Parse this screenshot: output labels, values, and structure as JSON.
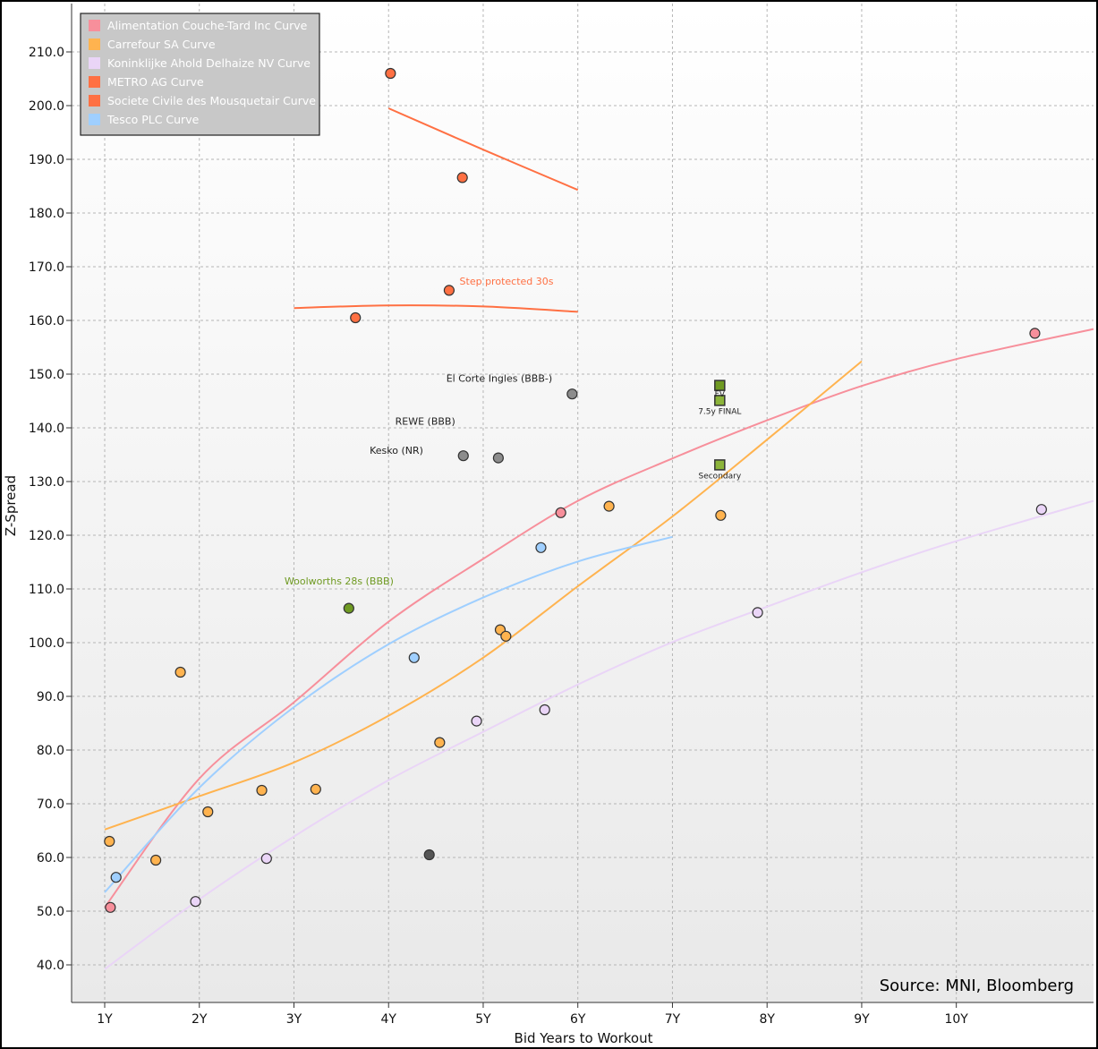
{
  "chart_data": {
    "type": "scatter",
    "title": "",
    "xlabel": "Bid Years to Workout",
    "ylabel": "Z-Spread",
    "xlim": [
      0.65,
      11.45
    ],
    "ylim": [
      33,
      219
    ],
    "grid": true,
    "legend_position": "top-left",
    "source": "Source: MNI, Bloomberg",
    "x_ticks": [
      {
        "v": 1,
        "label": "1Y"
      },
      {
        "v": 2,
        "label": "2Y"
      },
      {
        "v": 3,
        "label": "3Y"
      },
      {
        "v": 4,
        "label": "4Y"
      },
      {
        "v": 5,
        "label": "5Y"
      },
      {
        "v": 6,
        "label": "6Y"
      },
      {
        "v": 7,
        "label": "7Y"
      },
      {
        "v": 8,
        "label": "8Y"
      },
      {
        "v": 9,
        "label": "9Y"
      },
      {
        "v": 10,
        "label": "10Y"
      }
    ],
    "y_ticks": [
      {
        "v": 40,
        "label": "40.0"
      },
      {
        "v": 50,
        "label": "50.0"
      },
      {
        "v": 60,
        "label": "60.0"
      },
      {
        "v": 70,
        "label": "70.0"
      },
      {
        "v": 80,
        "label": "80.0"
      },
      {
        "v": 90,
        "label": "90.0"
      },
      {
        "v": 100,
        "label": "100.0"
      },
      {
        "v": 110,
        "label": "110.0"
      },
      {
        "v": 120,
        "label": "120.0"
      },
      {
        "v": 130,
        "label": "130.0"
      },
      {
        "v": 140,
        "label": "140.0"
      },
      {
        "v": 150,
        "label": "150.0"
      },
      {
        "v": 160,
        "label": "160.0"
      },
      {
        "v": 170,
        "label": "170.0"
      },
      {
        "v": 180,
        "label": "180.0"
      },
      {
        "v": 190,
        "label": "190.0"
      },
      {
        "v": 200,
        "label": "200.0"
      },
      {
        "v": 210,
        "label": "210.0"
      }
    ],
    "series": [
      {
        "name": "Alimentation Couche-Tard Inc Curve",
        "color": "#f78f9b",
        "points": [
          [
            1.06,
            50.7
          ],
          [
            5.82,
            124.2
          ],
          [
            10.83,
            157.6
          ]
        ],
        "curve": [
          [
            1,
            50.7
          ],
          [
            2,
            74.7
          ],
          [
            3,
            88.9
          ],
          [
            4,
            103.9
          ],
          [
            5,
            115.6
          ],
          [
            6,
            126.4
          ],
          [
            7,
            134.3
          ],
          [
            8,
            141.4
          ],
          [
            9,
            147.8
          ],
          [
            10,
            152.8
          ],
          [
            11.45,
            158.4
          ]
        ]
      },
      {
        "name": "Carrefour SA Curve",
        "color": "#ffb34f",
        "points": [
          [
            1.05,
            63.0
          ],
          [
            1.54,
            59.5
          ],
          [
            1.8,
            94.5
          ],
          [
            2.09,
            68.5
          ],
          [
            2.66,
            72.5
          ],
          [
            3.23,
            72.7
          ],
          [
            4.54,
            81.4
          ],
          [
            5.18,
            102.4
          ],
          [
            5.24,
            101.2
          ],
          [
            6.33,
            125.4
          ],
          [
            7.51,
            123.7
          ]
        ],
        "curve": [
          [
            1,
            65.2
          ],
          [
            2,
            71.4
          ],
          [
            3,
            77.7
          ],
          [
            4,
            86.4
          ],
          [
            5,
            97.2
          ],
          [
            6,
            110.5
          ],
          [
            7,
            123.5
          ],
          [
            8,
            137.8
          ],
          [
            9,
            152.4
          ]
        ]
      },
      {
        "name": "Koninklijke Ahold Delhaize NV Curve",
        "color": "#ead5f7",
        "points": [
          [
            1.96,
            51.8
          ],
          [
            2.71,
            59.8
          ],
          [
            4.93,
            85.4
          ],
          [
            5.65,
            87.5
          ],
          [
            7.9,
            105.6
          ],
          [
            10.9,
            124.8
          ]
        ],
        "curve": [
          [
            1,
            39.2
          ],
          [
            2,
            52.2
          ],
          [
            3,
            63.9
          ],
          [
            4,
            74.4
          ],
          [
            5,
            83.4
          ],
          [
            6,
            92.2
          ],
          [
            7,
            100.1
          ],
          [
            8,
            106.7
          ],
          [
            9,
            113.1
          ],
          [
            10,
            118.9
          ],
          [
            11.45,
            126.4
          ]
        ]
      },
      {
        "name": "METRO AG Curve",
        "color": "#ff7043",
        "points": [
          [
            4.02,
            206.0
          ],
          [
            4.78,
            186.6
          ]
        ],
        "curve": [
          [
            4,
            199.5
          ],
          [
            5,
            191.8
          ],
          [
            6,
            184.3
          ]
        ]
      },
      {
        "name": "Societe Civile des Mousquetair Curve",
        "color": "#ff7043",
        "points": [
          [
            4.64,
            165.6
          ],
          [
            3.65,
            160.5
          ]
        ],
        "curve": [
          [
            3,
            162.3
          ],
          [
            4,
            162.8
          ],
          [
            5,
            162.6
          ],
          [
            6,
            161.6
          ]
        ]
      },
      {
        "name": "Tesco PLC Curve",
        "color": "#9fcfff",
        "points": [
          [
            1.12,
            56.3
          ],
          [
            4.27,
            97.2
          ],
          [
            5.61,
            117.7
          ]
        ],
        "curve": [
          [
            1,
            53.5
          ],
          [
            2,
            73.0
          ],
          [
            3,
            88.0
          ],
          [
            4,
            99.7
          ],
          [
            5,
            108.4
          ],
          [
            6,
            115.1
          ],
          [
            7,
            119.7
          ]
        ]
      }
    ],
    "other_points": [
      {
        "name": "El Corte Ingles (BBB-)",
        "x": 5.94,
        "y": 146.3,
        "color": "#8c8c8c",
        "shape": "circle"
      },
      {
        "name": "REWE (BBB)",
        "x": 4.79,
        "y": 134.8,
        "color": "#8c8c8c",
        "shape": "circle"
      },
      {
        "name": "Kesko (NR)",
        "x": 5.16,
        "y": 134.4,
        "color": "#8c8c8c",
        "shape": "circle"
      },
      {
        "name": "unlabeled",
        "x": 4.43,
        "y": 60.5,
        "color": "#555555",
        "shape": "circle"
      },
      {
        "name": "Woolworths 28s (BBB)",
        "x": 3.58,
        "y": 106.4,
        "color": "#6f9a22",
        "shape": "circle"
      },
      {
        "name": "FV",
        "x": 7.5,
        "y": 147.9,
        "color": "#6f9a22",
        "shape": "square"
      },
      {
        "name": "7.5y FINAL",
        "x": 7.5,
        "y": 145.1,
        "color": "#8cb43a",
        "shape": "square"
      },
      {
        "name": "Secondary",
        "x": 7.5,
        "y": 133.1,
        "color": "#8cb43a",
        "shape": "square"
      }
    ],
    "annotations": [
      {
        "text": "Step protected 30s",
        "x": 4.75,
        "y": 166.7,
        "anchor": "start",
        "color": "#ff7043",
        "size": 11
      },
      {
        "text": "Woolworths 28s (BBB)",
        "x": 2.9,
        "y": 110.8,
        "anchor": "start",
        "color": "#6f9a22",
        "size": 11
      },
      {
        "text": "El Corte Ingles (BBB-)",
        "x": 5.73,
        "y": 148.6,
        "anchor": "end",
        "color": "#222222",
        "size": 11
      },
      {
        "text": "REWE (BBB)",
        "x": 4.07,
        "y": 140.6,
        "anchor": "start",
        "color": "#222222",
        "size": 11
      },
      {
        "text": "Kesko (NR)",
        "x": 3.8,
        "y": 135.2,
        "anchor": "start",
        "color": "#222222",
        "size": 11
      },
      {
        "text": "FV",
        "x": 7.5,
        "y": 145.8,
        "anchor": "middle",
        "color": "#222222",
        "size": 9
      },
      {
        "text": "7.5y FINAL",
        "x": 7.5,
        "y": 142.6,
        "anchor": "middle",
        "color": "#222222",
        "size": 9
      },
      {
        "text": "Secondary",
        "x": 7.5,
        "y": 130.6,
        "anchor": "middle",
        "color": "#222222",
        "size": 9
      }
    ]
  }
}
